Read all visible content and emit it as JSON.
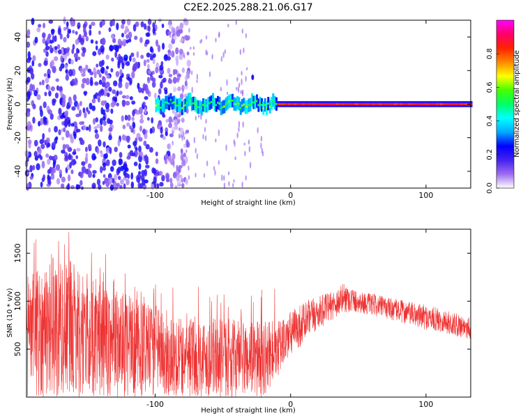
{
  "title": "C2E2.2025.288.21.06.G17",
  "chart_data": [
    {
      "type": "heatmap",
      "title": "C2E2.2025.288.21.06.G17",
      "xlabel": "Height of straight line (km)",
      "ylabel": "Frequency (Hz)",
      "xlim": [
        -195,
        133
      ],
      "ylim": [
        -50,
        50
      ],
      "xticks": [
        -100,
        0,
        100
      ],
      "xtick_labels": [
        "-100",
        "0",
        "100"
      ],
      "yticks": [
        -40,
        -20,
        0,
        20,
        40
      ],
      "ytick_labels": [
        "-40",
        "-20",
        "0",
        "20",
        "40"
      ],
      "colorbar": {
        "label": "Normalized spectral amplitude",
        "range": [
          0,
          1
        ],
        "ticks": [
          0.0,
          0.2,
          0.4,
          0.6,
          0.8
        ],
        "tick_labels": [
          "0.0",
          "0.2",
          "0.4",
          "0.6",
          "0.8"
        ],
        "colors": [
          "#ffffff",
          "#9d6cf0",
          "#4422ee",
          "#0000ff",
          "#00aaff",
          "#00ffff",
          "#00ff66",
          "#44ff00",
          "#ffff00",
          "#ff8800",
          "#ff2200",
          "#ff0066",
          "#ff00ff"
        ]
      },
      "description_of_data": {
        "noise_region_x": [
          -195,
          -90
        ],
        "noise_amplitude_range": [
          0.05,
          0.25
        ],
        "signal_center_hz": 0,
        "signal_start_km": -100,
        "signal_stable_from_km": -10,
        "stable_amplitude": 0.85,
        "outlier_point": {
          "x": -28,
          "y": 16,
          "amplitude": 0.2
        }
      }
    },
    {
      "type": "line",
      "series": [
        {
          "name": "SNR",
          "color": "#ee3333"
        }
      ],
      "xlabel": "Height of straight line (km)",
      "ylabel": "SNR (10 * v/v)",
      "xlim": [
        -195,
        133
      ],
      "ylim": [
        0,
        1750
      ],
      "xticks": [
        -100,
        0,
        100
      ],
      "xtick_labels": [
        "-100",
        "0",
        "100"
      ],
      "yticks": [
        500,
        1000,
        1500
      ],
      "ytick_labels": [
        "500",
        "1000",
        "1500"
      ],
      "envelope_points_x": [
        -195,
        -170,
        -140,
        -110,
        -80,
        -50,
        -20,
        -10,
        0,
        10,
        20,
        30,
        40,
        50,
        60,
        70,
        80,
        90,
        100,
        110,
        120,
        133
      ],
      "envelope_upper": [
        1300,
        1500,
        1200,
        1000,
        850,
        820,
        800,
        780,
        900,
        1000,
        1050,
        1100,
        1200,
        1100,
        1080,
        1050,
        1020,
        990,
        960,
        930,
        880,
        850
      ],
      "envelope_lower": [
        0,
        0,
        0,
        0,
        0,
        0,
        0,
        200,
        420,
        560,
        700,
        800,
        880,
        880,
        850,
        820,
        780,
        740,
        700,
        680,
        640,
        600
      ]
    }
  ]
}
